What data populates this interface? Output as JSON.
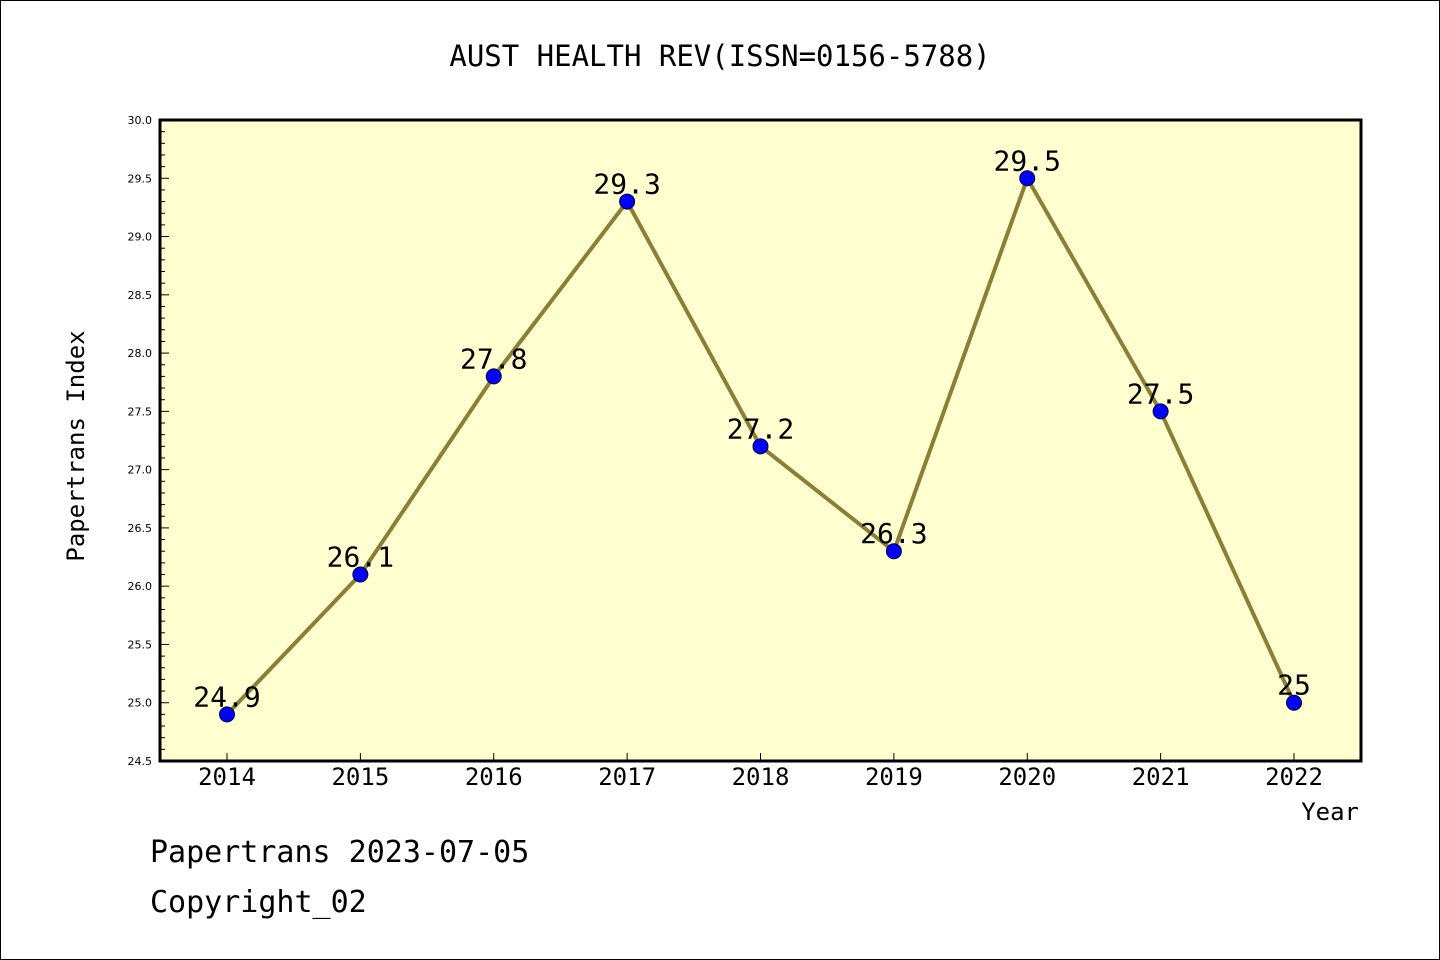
{
  "chart_data": {
    "type": "line",
    "title": "AUST HEALTH REV(ISSN=0156-5788)",
    "xlabel": "Year",
    "ylabel": "Papertrans Index",
    "categories": [
      "2014",
      "2015",
      "2016",
      "2017",
      "2018",
      "2019",
      "2020",
      "2021",
      "2022"
    ],
    "values": [
      24.9,
      26.1,
      27.8,
      29.3,
      27.2,
      26.3,
      29.5,
      27.5,
      25
    ],
    "data_labels": [
      "24.9",
      "26.1",
      "27.8",
      "29.3",
      "27.2",
      "26.3",
      "29.5",
      "27.5",
      "25"
    ],
    "ylim": [
      24.5,
      30.0
    ],
    "yticks": [
      "24.5",
      "25.0",
      "25.5",
      "26.0",
      "26.5",
      "27.0",
      "27.5",
      "28.0",
      "28.5",
      "29.0",
      "29.5",
      "30.0"
    ],
    "grid": false,
    "colors": {
      "plot_background": "#ffffd0",
      "line": "#8c7e35",
      "marker": "#0000ff"
    }
  },
  "footer": {
    "line1": "Papertrans 2023-07-05",
    "line2": "Copyright_02"
  }
}
